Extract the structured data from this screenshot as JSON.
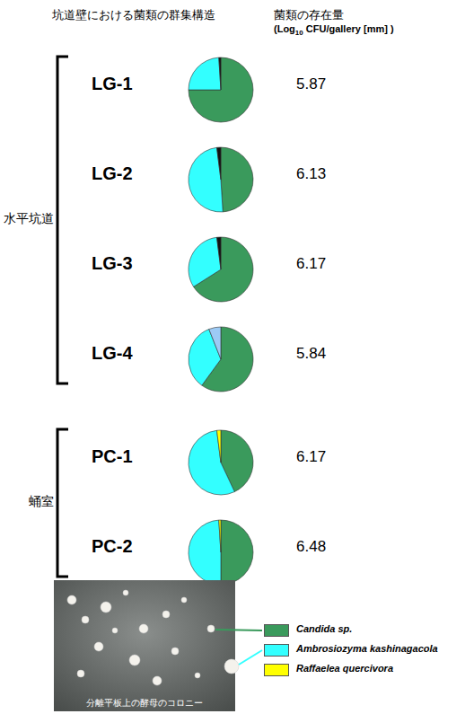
{
  "chart_data": {
    "type": "pie",
    "title": "坑道壁における菌類の群集構造",
    "abundance_title": "菌類の存在量",
    "abundance_unit": {
      "prefix": "(Log",
      "subscript": "10",
      "suffix": "CFU/gallery [mm] )"
    },
    "series": [
      {
        "name": "Candida sp.",
        "color": "#3a9a5c"
      },
      {
        "name": "Ambrosiozyma kashinagacola",
        "color": "#33ffff"
      },
      {
        "name": "Raffaelea quercivora",
        "color": "#ffff00"
      },
      {
        "name": null,
        "color": "#111111"
      },
      {
        "name": null,
        "color": "#9ccaf5"
      }
    ],
    "pies": [
      {
        "label": "LG-1",
        "values": [
          75,
          24,
          0,
          1,
          0
        ],
        "abundance": 5.87
      },
      {
        "label": "LG-2",
        "values": [
          49,
          49,
          0,
          2,
          0
        ],
        "abundance": 6.13
      },
      {
        "label": "LG-3",
        "values": [
          66,
          32,
          0,
          2,
          0
        ],
        "abundance": 6.17
      },
      {
        "label": "LG-4",
        "values": [
          60,
          34,
          0,
          0,
          6
        ],
        "abundance": 5.84
      },
      {
        "label": "PC-1",
        "values": [
          43,
          55,
          2,
          0,
          0
        ],
        "abundance": 6.17
      },
      {
        "label": "PC-2",
        "values": [
          50,
          49,
          1,
          0,
          0
        ],
        "abundance": 6.48
      }
    ],
    "groups": [
      {
        "label": "水平坑道",
        "members": [
          "LG-1",
          "LG-2",
          "LG-3",
          "LG-4"
        ]
      },
      {
        "label": "蛹室",
        "members": [
          "PC-1",
          "PC-2"
        ]
      }
    ],
    "photo_caption": "分離平板上の酵母のコロニー",
    "legend": "bottom right"
  }
}
